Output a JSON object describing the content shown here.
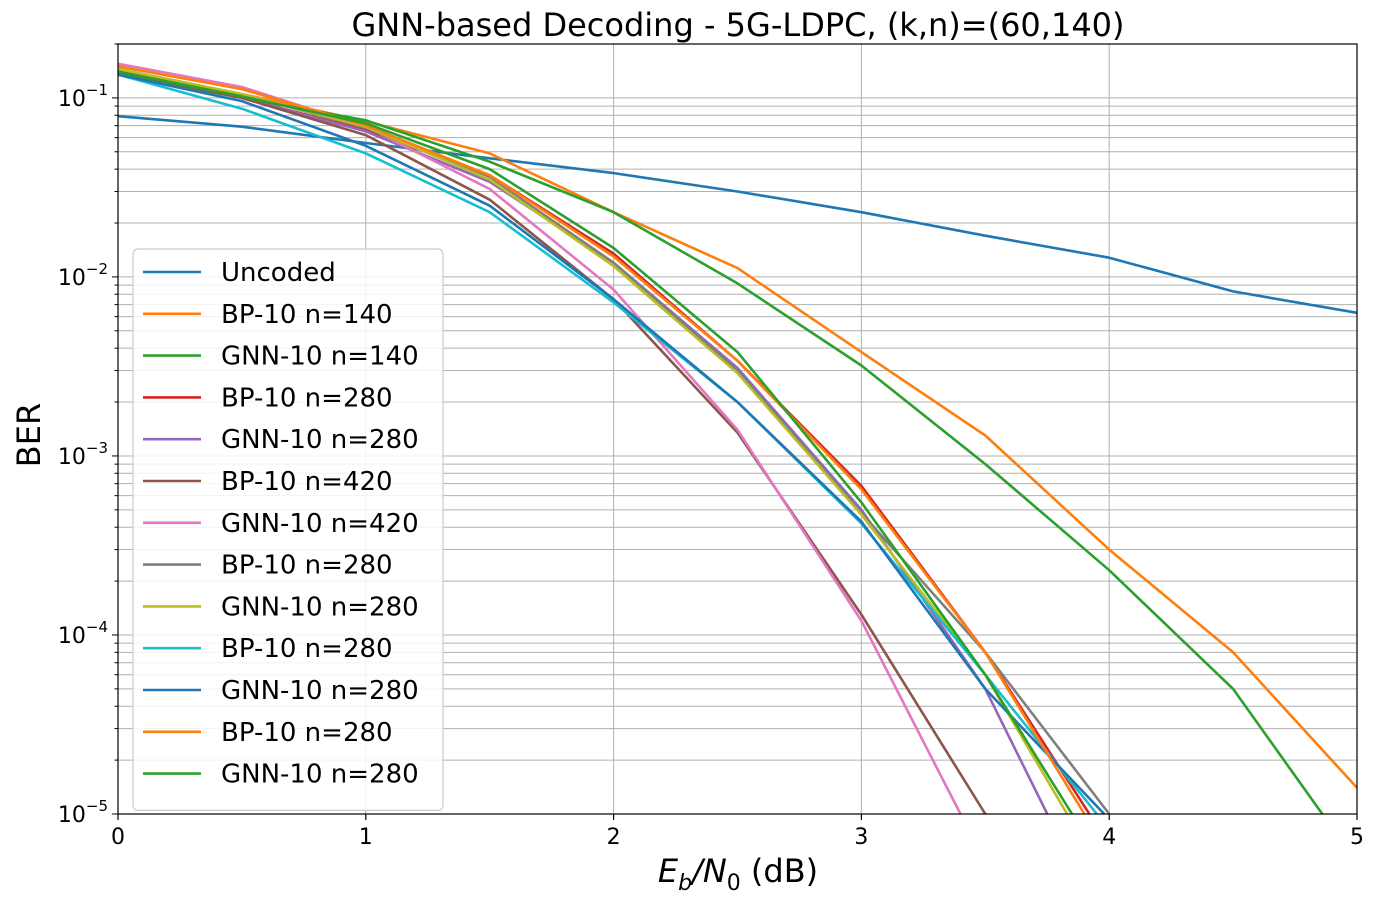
{
  "chart_data": {
    "type": "line",
    "title": "GNN-based Decoding - 5G-LDPC, (k,n)=(60,140)",
    "xlabel_main": "E",
    "xlabel_sub1": "b",
    "xlabel_mid": "/N",
    "xlabel_sub2": "0",
    "xlabel_tail": " (dB)",
    "ylabel": "BER",
    "xlim": [
      0,
      5
    ],
    "ylim": [
      1e-05,
      0.2
    ],
    "yscale": "log",
    "grid": true,
    "legend_position": "lower-left",
    "x_ticks": [
      {
        "value": 0,
        "label": "0"
      },
      {
        "value": 1,
        "label": "1"
      },
      {
        "value": 2,
        "label": "2"
      },
      {
        "value": 3,
        "label": "3"
      },
      {
        "value": 4,
        "label": "4"
      },
      {
        "value": 5,
        "label": "5"
      }
    ],
    "y_ticks": [
      {
        "value": 0.1,
        "base": "10",
        "exp": "−1"
      },
      {
        "value": 0.01,
        "base": "10",
        "exp": "−2"
      },
      {
        "value": 0.001,
        "base": "10",
        "exp": "−3"
      },
      {
        "value": 0.0001,
        "base": "10",
        "exp": "−4"
      },
      {
        "value": 1e-05,
        "base": "10",
        "exp": "−5"
      }
    ],
    "series": [
      {
        "name": "Uncoded",
        "color": "#1f77b4",
        "x": [
          0,
          0.5,
          1,
          1.5,
          2,
          2.5,
          3,
          3.5,
          4,
          4.5,
          5
        ],
        "y": [
          0.079,
          0.069,
          0.056,
          0.046,
          0.038,
          0.03,
          0.023,
          0.017,
          0.0128,
          0.0083,
          0.0063
        ]
      },
      {
        "name": "BP-10 n=140",
        "color": "#ff7f0e",
        "x": [
          0,
          0.5,
          1,
          1.5,
          2,
          2.5,
          3,
          3.5,
          4,
          4.5,
          5
        ],
        "y": [
          0.14,
          0.105,
          0.074,
          0.049,
          0.023,
          0.0112,
          0.0038,
          0.0013,
          0.0003,
          8e-05,
          1.4e-05
        ]
      },
      {
        "name": "GNN-10 n=140",
        "color": "#2ca02c",
        "x": [
          0,
          0.5,
          1,
          1.5,
          2,
          2.5,
          3,
          3.5,
          4,
          4.5,
          4.86
        ],
        "y": [
          0.135,
          0.1,
          0.075,
          0.044,
          0.023,
          0.0092,
          0.0032,
          0.0009,
          0.00023,
          5e-05,
          1e-05
        ]
      },
      {
        "name": "BP-10 n=280",
        "color": "#d62728",
        "x": [
          0,
          0.5,
          1,
          1.5,
          2,
          2.5,
          3,
          3.5,
          3.92
        ],
        "y": [
          0.14,
          0.1,
          0.066,
          0.037,
          0.0135,
          0.0034,
          0.00068,
          8e-05,
          1e-05
        ]
      },
      {
        "name": "GNN-10 n=280",
        "color": "#9467bd",
        "x": [
          0,
          0.5,
          1,
          1.5,
          2,
          2.5,
          3,
          3.5,
          3.75
        ],
        "y": [
          0.14,
          0.1,
          0.065,
          0.034,
          0.012,
          0.0031,
          0.0005,
          5e-05,
          1e-05
        ]
      },
      {
        "name": "BP-10 n=420",
        "color": "#8c564b",
        "x": [
          0,
          0.5,
          1,
          1.5,
          2,
          2.5,
          3,
          3.5
        ],
        "y": [
          0.14,
          0.1,
          0.062,
          0.027,
          0.0075,
          0.00135,
          0.00013,
          1e-05
        ]
      },
      {
        "name": "GNN-10 n=420",
        "color": "#e377c2",
        "x": [
          0,
          0.5,
          1,
          1.5,
          2,
          2.5,
          3,
          3.4
        ],
        "y": [
          0.155,
          0.115,
          0.069,
          0.031,
          0.0085,
          0.0014,
          0.00012,
          1e-05
        ]
      },
      {
        "name": "BP-10 n=280",
        "color": "#7f7f7f",
        "x": [
          0,
          0.5,
          1,
          1.5,
          2,
          2.5,
          3,
          3.5,
          4
        ],
        "y": [
          0.145,
          0.105,
          0.068,
          0.036,
          0.012,
          0.003,
          0.00048,
          8e-05,
          1e-05
        ]
      },
      {
        "name": "GNN-10 n=280",
        "color": "#bcbd22",
        "x": [
          0,
          0.5,
          1,
          1.5,
          2,
          2.5,
          3,
          3.5,
          3.83
        ],
        "y": [
          0.145,
          0.105,
          0.069,
          0.035,
          0.0115,
          0.0029,
          0.00047,
          6e-05,
          1e-05
        ]
      },
      {
        "name": "BP-10 n=280",
        "color": "#17becf",
        "x": [
          0,
          0.5,
          1,
          1.5,
          2,
          2.5,
          3,
          3.5,
          3.95
        ],
        "y": [
          0.135,
          0.087,
          0.049,
          0.023,
          0.0072,
          0.002,
          0.00042,
          6e-05,
          1e-05
        ]
      },
      {
        "name": "GNN-10 n=280",
        "color": "#1f77b4",
        "x": [
          0,
          0.5,
          1,
          1.5,
          2,
          2.5,
          3,
          3.5,
          3.98
        ],
        "y": [
          0.135,
          0.096,
          0.054,
          0.025,
          0.0075,
          0.002,
          0.00043,
          5e-05,
          1e-05
        ]
      },
      {
        "name": "BP-10 n=280",
        "color": "#ff7f0e",
        "x": [
          0,
          0.5,
          1,
          1.5,
          2,
          2.5,
          3,
          3.5,
          3.9
        ],
        "y": [
          0.15,
          0.112,
          0.07,
          0.037,
          0.013,
          0.0034,
          0.00065,
          8e-05,
          1e-05
        ]
      },
      {
        "name": "GNN-10 n=280",
        "color": "#2ca02c",
        "x": [
          0,
          0.5,
          1,
          1.5,
          2,
          2.5,
          3,
          3.5,
          3.85
        ],
        "y": [
          0.14,
          0.102,
          0.072,
          0.04,
          0.0145,
          0.0038,
          0.00055,
          6e-05,
          1e-05
        ]
      }
    ]
  }
}
